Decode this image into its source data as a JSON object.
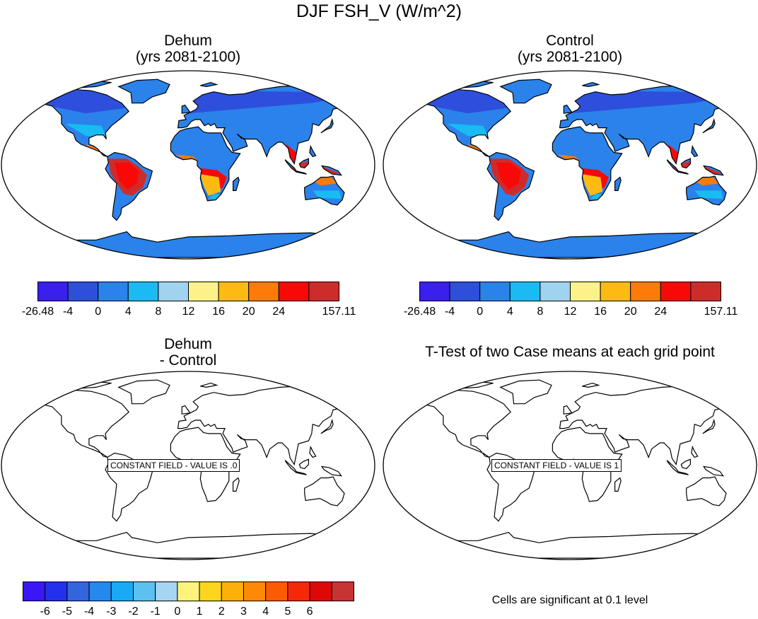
{
  "figure": {
    "title": "DJF FSH_V (W/m^2)"
  },
  "panels": [
    {
      "id": "dehum",
      "title_line1": "Dehum",
      "title_line2": "(yrs 2081-2100)",
      "filled": true
    },
    {
      "id": "control",
      "title_line1": "Control",
      "title_line2": "(yrs 2081-2100)",
      "filled": true
    },
    {
      "id": "diff",
      "title_line1": "Dehum",
      "title_line2": "- Control",
      "filled": false,
      "annotation": "CONSTANT FIELD - VALUE IS .0"
    },
    {
      "id": "ttest",
      "title_line1": "T-Test of two Case means at each grid point",
      "filled": false,
      "annotation": "CONSTANT FIELD - VALUE IS 1"
    }
  ],
  "colorbars": {
    "main": {
      "colors": [
        "#3a1fef",
        "#2d4fdc",
        "#2b82ea",
        "#18bcf2",
        "#9fd3ef",
        "#fcf28a",
        "#fdbb12",
        "#fd7b06",
        "#f90808",
        "#d02b2b"
      ],
      "labels": [
        "-26.48",
        "-4",
        "0",
        "4",
        "8",
        "12",
        "16",
        "20",
        "24",
        "157.11"
      ]
    },
    "diff": {
      "colors": [
        "#3a17f5",
        "#2330ec",
        "#3365dd",
        "#2588ed",
        "#1aaaf5",
        "#5cc0f0",
        "#a4d5f1",
        "#fdf37d",
        "#fdd51f",
        "#fdb009",
        "#fd8a06",
        "#fc5b06",
        "#f52807",
        "#df0808",
        "#c83333"
      ],
      "labels": [
        "-6",
        "-5",
        "-4",
        "-3",
        "-2",
        "-1",
        "0",
        "1",
        "2",
        "3",
        "4",
        "5",
        "6"
      ]
    }
  },
  "footnote": "Cells are significant at 0.1 level",
  "map_colors": {
    "land_base": "#2b82ea",
    "land_cool": "#2d4fdc",
    "land_warm": "#fdbb12",
    "land_hot": "#f90808",
    "land_deep": "#d02b2b",
    "land_orange": "#fd7b06",
    "land_light": "#18bcf2",
    "antarctica": "#2b82ea",
    "ocean": "#ffffff",
    "coast": "#000000"
  }
}
